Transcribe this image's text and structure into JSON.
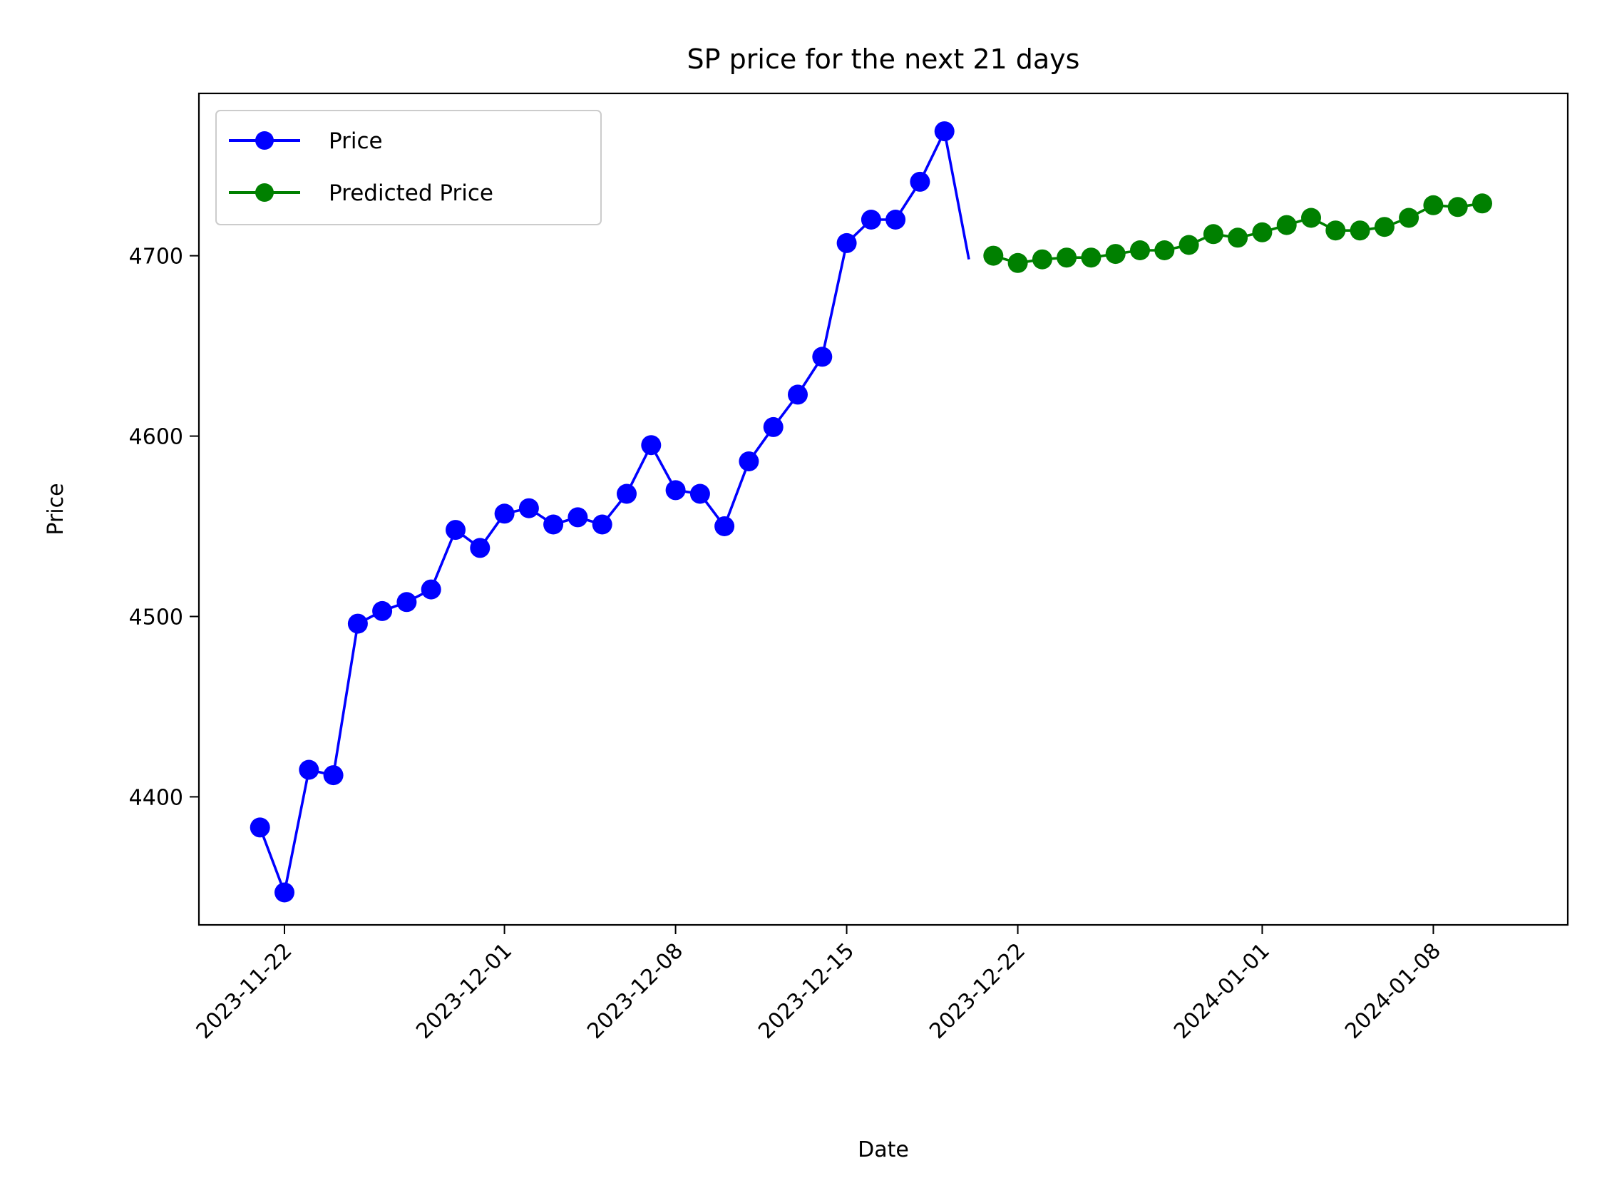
{
  "chart_data": {
    "type": "line",
    "title": "SP price for the next 21 days",
    "xlabel": "Date",
    "ylabel": "Price",
    "x_ticks": [
      "2023-11-22",
      "2023-12-01",
      "2023-12-08",
      "2023-12-15",
      "2023-12-22",
      "2024-01-01",
      "2024-01-08"
    ],
    "y_ticks": [
      4400,
      4500,
      4600,
      4700
    ],
    "xlim": [
      "2023-11-18 12:00",
      "2024-01-13 12:00"
    ],
    "ylim": [
      4329,
      4790
    ],
    "legend_position": "top-left",
    "grid": false,
    "series": [
      {
        "name": "Price",
        "color": "#0000ff",
        "marker": "circle",
        "points": [
          [
            "2023-11-21",
            4383
          ],
          [
            "2023-11-22",
            4347
          ],
          [
            "2023-11-23",
            4415
          ],
          [
            "2023-11-24",
            4412
          ],
          [
            "2023-11-25",
            4496
          ],
          [
            "2023-11-26",
            4503
          ],
          [
            "2023-11-27",
            4508
          ],
          [
            "2023-11-28",
            4515
          ],
          [
            "2023-11-29",
            4548
          ],
          [
            "2023-11-30",
            4538
          ],
          [
            "2023-12-01",
            4557
          ],
          [
            "2023-12-02",
            4560
          ],
          [
            "2023-12-03",
            4551
          ],
          [
            "2023-12-04",
            4555
          ],
          [
            "2023-12-05",
            4551
          ],
          [
            "2023-12-06",
            4568
          ],
          [
            "2023-12-07",
            4595
          ],
          [
            "2023-12-08",
            4570
          ],
          [
            "2023-12-09",
            4568
          ],
          [
            "2023-12-10",
            4550
          ],
          [
            "2023-12-11",
            4586
          ],
          [
            "2023-12-12",
            4605
          ],
          [
            "2023-12-13",
            4623
          ],
          [
            "2023-12-14",
            4644
          ],
          [
            "2023-12-15",
            4707
          ],
          [
            "2023-12-16",
            4720
          ],
          [
            "2023-12-17",
            4720
          ],
          [
            "2023-12-18",
            4741
          ],
          [
            "2023-12-19",
            4769
          ]
        ],
        "tail_end": [
          "2023-12-20",
          4698
        ]
      },
      {
        "name": "Predicted Price",
        "color": "#008000",
        "marker": "circle",
        "points": [
          [
            "2023-12-21",
            4700
          ],
          [
            "2023-12-22",
            4696
          ],
          [
            "2023-12-23",
            4698
          ],
          [
            "2023-12-24",
            4699
          ],
          [
            "2023-12-25",
            4699
          ],
          [
            "2023-12-26",
            4701
          ],
          [
            "2023-12-27",
            4703
          ],
          [
            "2023-12-28",
            4703
          ],
          [
            "2023-12-29",
            4706
          ],
          [
            "2023-12-30",
            4712
          ],
          [
            "2023-12-31",
            4710
          ],
          [
            "2024-01-01",
            4713
          ],
          [
            "2024-01-02",
            4717
          ],
          [
            "2024-01-03",
            4721
          ],
          [
            "2024-01-04",
            4714
          ],
          [
            "2024-01-05",
            4714
          ],
          [
            "2024-01-06",
            4716
          ],
          [
            "2024-01-07",
            4721
          ],
          [
            "2024-01-08",
            4728
          ],
          [
            "2024-01-09",
            4727
          ],
          [
            "2024-01-10",
            4729
          ]
        ]
      }
    ]
  }
}
